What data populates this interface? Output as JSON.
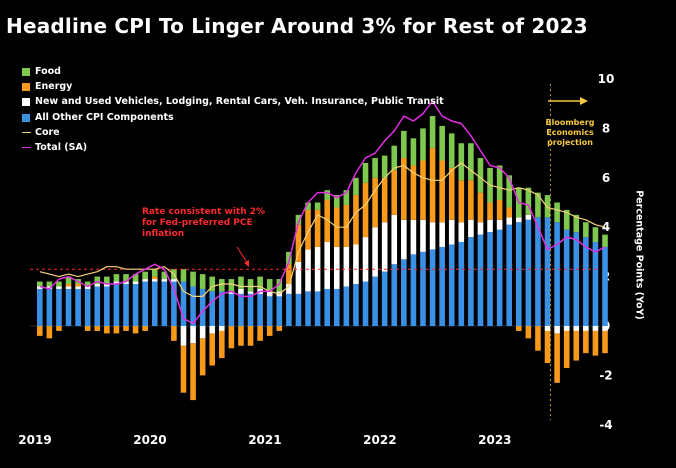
{
  "chart_data": {
    "type": "bar",
    "title": "Headline CPI To Linger Around 3% for Rest of 2023",
    "ylabel": "Percentage Points (YoY)",
    "ylim": [
      -4,
      10
    ],
    "y_ticks": [
      -4,
      -2,
      0,
      2,
      4,
      6,
      8,
      10
    ],
    "x_ticks": [
      "2019",
      "2020",
      "2021",
      "2022",
      "2023"
    ],
    "stacked": true,
    "start_month": "2019-01",
    "projection_start": "2023-07",
    "reference_line": 2.3,
    "months": [
      "2019-01",
      "2019-02",
      "2019-03",
      "2019-04",
      "2019-05",
      "2019-06",
      "2019-07",
      "2019-08",
      "2019-09",
      "2019-10",
      "2019-11",
      "2019-12",
      "2020-01",
      "2020-02",
      "2020-03",
      "2020-04",
      "2020-05",
      "2020-06",
      "2020-07",
      "2020-08",
      "2020-09",
      "2020-10",
      "2020-11",
      "2020-12",
      "2021-01",
      "2021-02",
      "2021-03",
      "2021-04",
      "2021-05",
      "2021-06",
      "2021-07",
      "2021-08",
      "2021-09",
      "2021-10",
      "2021-11",
      "2021-12",
      "2022-01",
      "2022-02",
      "2022-03",
      "2022-04",
      "2022-05",
      "2022-06",
      "2022-07",
      "2022-08",
      "2022-09",
      "2022-10",
      "2022-11",
      "2022-12",
      "2023-01",
      "2023-02",
      "2023-03",
      "2023-04",
      "2023-05",
      "2023-06",
      "2023-07",
      "2023-08",
      "2023-09",
      "2023-10",
      "2023-11",
      "2023-12"
    ],
    "series": [
      {
        "name": "Food",
        "color": "#7ec850",
        "values": [
          0.2,
          0.2,
          0.2,
          0.3,
          0.2,
          0.2,
          0.3,
          0.3,
          0.3,
          0.3,
          0.3,
          0.3,
          0.3,
          0.3,
          0.4,
          0.5,
          0.6,
          0.6,
          0.6,
          0.5,
          0.5,
          0.5,
          0.5,
          0.5,
          0.5,
          0.5,
          0.5,
          0.4,
          0.3,
          0.3,
          0.4,
          0.5,
          0.6,
          0.7,
          0.8,
          0.8,
          0.9,
          1.0,
          1.1,
          1.1,
          1.3,
          1.3,
          1.4,
          1.4,
          1.5,
          1.5,
          1.4,
          1.4,
          1.4,
          1.3,
          1.2,
          1.1,
          1.0,
          0.9,
          0.8,
          0.8,
          0.7,
          0.6,
          0.6,
          0.5
        ]
      },
      {
        "name": "Energy",
        "color": "#f79a1c",
        "values": [
          -0.4,
          -0.5,
          -0.2,
          0.1,
          0.1,
          -0.2,
          -0.2,
          -0.3,
          -0.3,
          -0.2,
          -0.3,
          -0.2,
          0.1,
          0.0,
          -0.6,
          -1.9,
          -2.3,
          -1.5,
          -1.3,
          -1.1,
          -0.9,
          -0.8,
          -0.8,
          -0.6,
          -0.4,
          -0.2,
          0.8,
          1.5,
          1.6,
          1.5,
          1.7,
          1.6,
          1.7,
          2.0,
          2.2,
          2.0,
          1.8,
          1.8,
          2.5,
          2.2,
          2.4,
          3.0,
          2.5,
          2.1,
          1.7,
          1.6,
          1.2,
          0.7,
          0.8,
          0.4,
          -0.2,
          -0.5,
          -1.0,
          -1.3,
          -2.0,
          -1.5,
          -1.2,
          -0.9,
          -1.0,
          -0.9
        ]
      },
      {
        "name": "New and Used Vehicles, Lodging, Rental Cars, Veh. Insurance, Public Transit",
        "color": "#ffffff",
        "values": [
          0.1,
          0.1,
          0.1,
          0.1,
          0.1,
          0.1,
          0.1,
          0.1,
          0.1,
          0.1,
          0.1,
          0.1,
          0.1,
          0.1,
          0.1,
          -0.8,
          -0.7,
          -0.5,
          -0.3,
          -0.2,
          0.1,
          0.2,
          0.1,
          0.2,
          0.2,
          0.2,
          0.4,
          1.3,
          1.7,
          1.8,
          1.9,
          1.7,
          1.6,
          1.6,
          1.8,
          2.0,
          2.0,
          2.0,
          1.6,
          1.4,
          1.3,
          1.1,
          1.0,
          1.0,
          0.8,
          0.7,
          0.5,
          0.5,
          0.4,
          0.3,
          0.2,
          0.2,
          0.0,
          -0.2,
          -0.3,
          -0.2,
          -0.2,
          -0.2,
          -0.2,
          -0.2
        ]
      },
      {
        "name": "All Other CPI Components",
        "color": "#3a90e5",
        "values": [
          1.5,
          1.5,
          1.5,
          1.5,
          1.5,
          1.5,
          1.6,
          1.6,
          1.7,
          1.7,
          1.7,
          1.8,
          1.8,
          1.8,
          1.8,
          1.8,
          1.6,
          1.5,
          1.4,
          1.4,
          1.3,
          1.3,
          1.3,
          1.3,
          1.2,
          1.2,
          1.3,
          1.3,
          1.4,
          1.4,
          1.5,
          1.5,
          1.6,
          1.7,
          1.8,
          2.0,
          2.2,
          2.5,
          2.7,
          2.9,
          3.0,
          3.1,
          3.2,
          3.3,
          3.4,
          3.6,
          3.7,
          3.8,
          3.9,
          4.1,
          4.2,
          4.3,
          4.4,
          4.4,
          4.2,
          3.9,
          3.8,
          3.6,
          3.4,
          3.2
        ]
      },
      {
        "name": "Core",
        "color": "#f6d37a",
        "type": "line",
        "values": [
          2.2,
          2.1,
          2.0,
          2.1,
          2.0,
          2.1,
          2.2,
          2.4,
          2.4,
          2.3,
          2.3,
          2.3,
          2.3,
          2.4,
          2.1,
          1.4,
          1.2,
          1.2,
          1.6,
          1.7,
          1.7,
          1.6,
          1.6,
          1.6,
          1.4,
          1.3,
          1.6,
          3.0,
          3.8,
          4.5,
          4.3,
          4.0,
          4.0,
          4.6,
          4.9,
          5.5,
          6.0,
          6.4,
          6.5,
          6.2,
          6.0,
          5.9,
          5.9,
          6.3,
          6.6,
          6.3,
          6.0,
          5.7,
          5.6,
          5.5,
          5.6,
          5.5,
          5.3,
          4.8,
          4.7,
          4.6,
          4.4,
          4.3,
          4.1,
          4.0
        ]
      },
      {
        "name": "Total (SA)",
        "color": "#e030e0",
        "type": "line",
        "values": [
          1.6,
          1.5,
          1.9,
          2.0,
          1.8,
          1.6,
          1.8,
          1.7,
          1.7,
          1.8,
          2.1,
          2.3,
          2.5,
          2.3,
          1.5,
          0.3,
          0.1,
          0.6,
          1.0,
          1.3,
          1.4,
          1.2,
          1.2,
          1.4,
          1.4,
          1.7,
          2.6,
          4.2,
          5.0,
          5.4,
          5.4,
          5.2,
          5.4,
          6.2,
          6.8,
          7.0,
          7.5,
          7.9,
          8.5,
          8.3,
          8.6,
          9.1,
          8.5,
          8.3,
          8.2,
          7.7,
          7.1,
          6.5,
          6.4,
          6.0,
          5.0,
          4.9,
          4.0,
          3.1,
          3.3,
          3.6,
          3.5,
          3.2,
          3.0,
          3.2
        ]
      }
    ],
    "annotations": [
      {
        "text": "Rate consistent with 2% for Fed-preferred PCE inflation",
        "color": "#ff2a2a"
      },
      {
        "text": "Bloomberg Economics projection",
        "color": "#f6c940"
      }
    ]
  }
}
